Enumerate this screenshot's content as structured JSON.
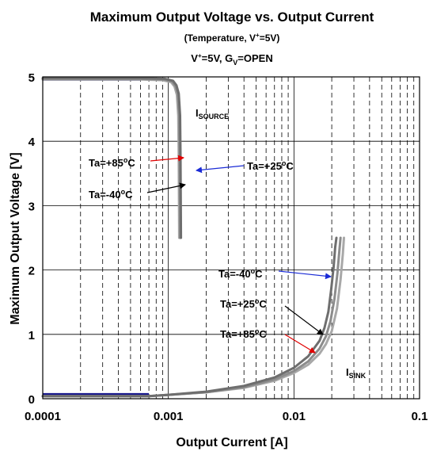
{
  "chart_data": {
    "type": "line",
    "title": "Maximum Output Voltage vs. Output Current",
    "subtitle": {
      "open": "(Temperature, V",
      "sup": "+",
      "close": "=5V)"
    },
    "condition": {
      "v": "V",
      "v_sup": "+",
      "mid": "=5V, G",
      "g_sub": "V",
      "end": "=OPEN"
    },
    "xlabel": "Output Current [A]",
    "ylabel": "Maximum Output Voltage [V]",
    "x_scale": "log",
    "xlim": [
      0.0001,
      0.1
    ],
    "ylim": [
      0,
      5
    ],
    "x_ticks": [
      {
        "value": 0.0001,
        "label": "0.0001"
      },
      {
        "value": 0.001,
        "label": "0.001"
      },
      {
        "value": 0.01,
        "label": "0.01"
      },
      {
        "value": 0.1,
        "label": "0.1"
      }
    ],
    "y_ticks": [
      {
        "value": 0,
        "label": "0"
      },
      {
        "value": 1,
        "label": "1"
      },
      {
        "value": 2,
        "label": "2"
      },
      {
        "value": 3,
        "label": "3"
      },
      {
        "value": 4,
        "label": "4"
      },
      {
        "value": 5,
        "label": "5"
      }
    ],
    "grid": true,
    "series": [
      {
        "name": "Ta=+85°C",
        "kind": "source",
        "color": "#a8a8a8",
        "x": [
          0.0001,
          0.0006,
          0.0009,
          0.00105,
          0.00112,
          0.00117,
          0.0012,
          0.00121,
          0.00122
        ],
        "y": [
          4.96,
          4.96,
          4.95,
          4.92,
          4.85,
          4.72,
          4.4,
          3.8,
          2.5
        ]
      },
      {
        "name": "Ta=+25°C",
        "kind": "source",
        "color": "#8c8c8c",
        "x": [
          0.0001,
          0.0006,
          0.00092,
          0.00107,
          0.00114,
          0.00119,
          0.00122,
          0.00123,
          0.00124
        ],
        "y": [
          4.97,
          4.97,
          4.96,
          4.93,
          4.86,
          4.73,
          4.4,
          3.8,
          2.5
        ]
      },
      {
        "name": "Ta=-40°C",
        "kind": "source",
        "color": "#6e6e6e",
        "x": [
          0.0001,
          0.0006,
          0.00094,
          0.00109,
          0.00116,
          0.00121,
          0.00124,
          0.00125,
          0.00126
        ],
        "y": [
          4.98,
          4.98,
          4.97,
          4.94,
          4.87,
          4.74,
          4.4,
          3.8,
          2.5
        ]
      },
      {
        "name": "Ta=+85°C",
        "kind": "sink",
        "color": "#a8a8a8",
        "x": [
          0.0001,
          0.0007,
          0.001,
          0.002,
          0.004,
          0.007,
          0.01,
          0.013,
          0.016,
          0.018,
          0.02,
          0.022,
          0.0235,
          0.0245,
          0.025
        ],
        "y": [
          0.04,
          0.04,
          0.06,
          0.1,
          0.17,
          0.28,
          0.4,
          0.53,
          0.7,
          0.85,
          1.05,
          1.4,
          1.85,
          2.25,
          2.5
        ]
      },
      {
        "name": "Ta=+25°C",
        "kind": "sink",
        "color": "#8c8c8c",
        "x": [
          0.0001,
          0.0007,
          0.001,
          0.002,
          0.004,
          0.007,
          0.01,
          0.013,
          0.016,
          0.018,
          0.0195,
          0.021,
          0.0222,
          0.023,
          0.0235
        ],
        "y": [
          0.04,
          0.04,
          0.06,
          0.1,
          0.18,
          0.3,
          0.43,
          0.58,
          0.78,
          0.97,
          1.2,
          1.55,
          1.95,
          2.3,
          2.5
        ]
      },
      {
        "name": "Ta=-40°C",
        "kind": "sink",
        "color": "#6e6e6e",
        "x": [
          0.0001,
          0.0007,
          0.001,
          0.002,
          0.004,
          0.007,
          0.01,
          0.013,
          0.016,
          0.0175,
          0.0188,
          0.0198,
          0.0207,
          0.0213,
          0.0218
        ],
        "y": [
          0.04,
          0.04,
          0.06,
          0.11,
          0.2,
          0.33,
          0.48,
          0.66,
          0.9,
          1.1,
          1.35,
          1.7,
          2.05,
          2.35,
          2.5
        ]
      }
    ],
    "low_rail": {
      "color": "#1a1a8c",
      "x": [
        0.0001,
        0.0007
      ],
      "y": 0.07
    },
    "high_rail": {
      "color": "#1a1a8c",
      "x": [
        0.0001,
        0.0006
      ],
      "y": 4.96
    },
    "annotations": [
      {
        "id": "source",
        "main": "I",
        "sub": "SOURCE"
      },
      {
        "id": "sink",
        "main": "I",
        "sub": "SINK"
      },
      {
        "id": "src-85",
        "lead": "Ta=+85",
        "sup": "o",
        "tail": "C",
        "arrow_color": "#e00000"
      },
      {
        "id": "src-25",
        "lead": "Ta=+25",
        "sup": "o",
        "tail": "C",
        "arrow_color": "#1a2bd6"
      },
      {
        "id": "src-40",
        "lead": "Ta=-40",
        "sup": "o",
        "tail": "C",
        "arrow_color": "#000000"
      },
      {
        "id": "sink-40",
        "lead": "Ta=-40",
        "sup": "o",
        "tail": "C",
        "arrow_color": "#1a2bd6"
      },
      {
        "id": "sink-25",
        "lead": "Ta=+25",
        "sup": "o",
        "tail": "C",
        "arrow_color": "#000000"
      },
      {
        "id": "sink-85",
        "lead": "Ta=+85",
        "sup": "o",
        "tail": "C",
        "arrow_color": "#e00000"
      }
    ]
  }
}
